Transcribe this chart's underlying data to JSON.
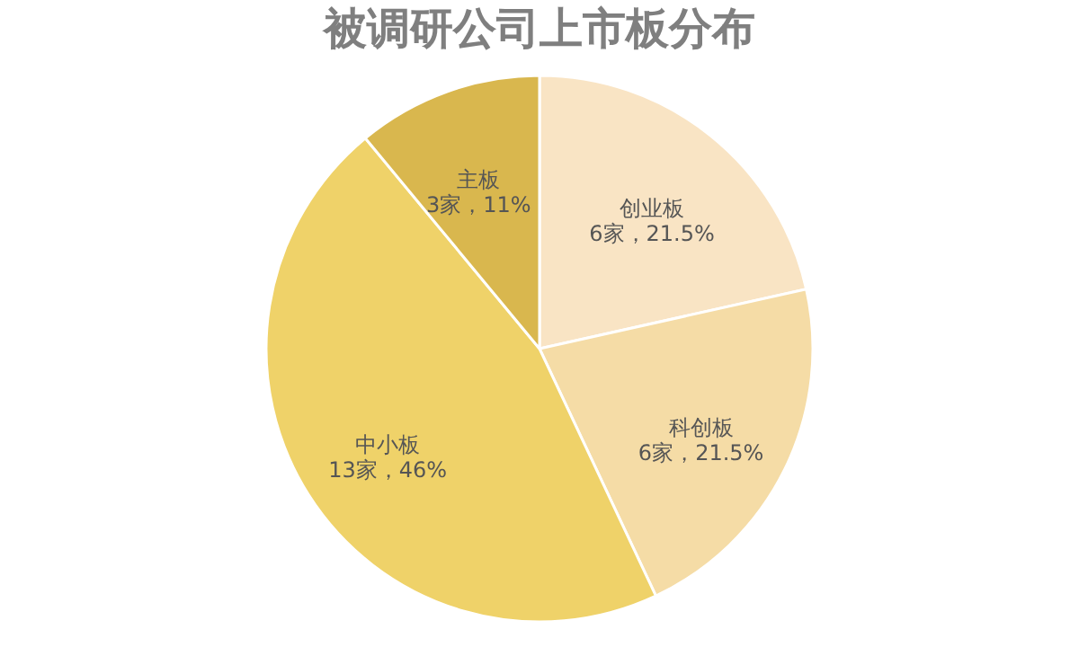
{
  "chart_data": {
    "type": "pie",
    "title": "被调研公司上市板分布",
    "categories": [
      "创业板",
      "科创板",
      "中小板",
      "主板"
    ],
    "values": [
      21.5,
      21.5,
      46,
      11
    ],
    "value_labels": [
      "6家，21.5%",
      "6家，21.5%",
      "13家，46%",
      "3家，11%"
    ],
    "colors": [
      "#f9e4c4",
      "#f5dca6",
      "#efd269",
      "#d9b74e"
    ],
    "legend": false
  }
}
